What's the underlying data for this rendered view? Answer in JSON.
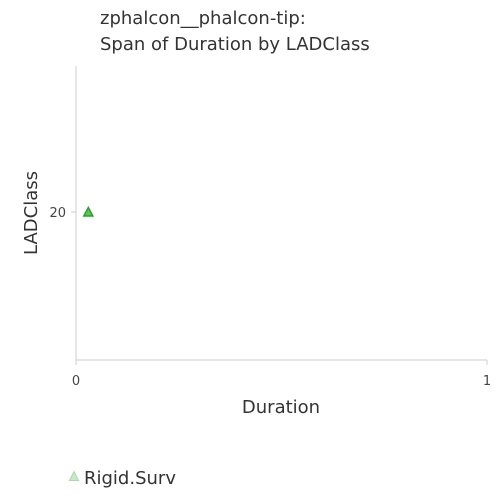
{
  "chart_data": {
    "type": "scatter",
    "title": [
      "zphalcon__phalcon-tip:",
      "Span of Duration by LADClass"
    ],
    "xlabel": "Duration",
    "ylabel": "LADClass",
    "xlim": [
      0,
      1
    ],
    "x_ticks": [
      0,
      1
    ],
    "y_ticks": [
      20
    ],
    "grid": false,
    "legend_position": "bottom-left",
    "series": [
      {
        "name": "Rigid.Surv",
        "marker": "triangle",
        "color": "#2ca02c",
        "points": [
          {
            "x": 0.03,
            "y": 20
          }
        ]
      }
    ]
  }
}
